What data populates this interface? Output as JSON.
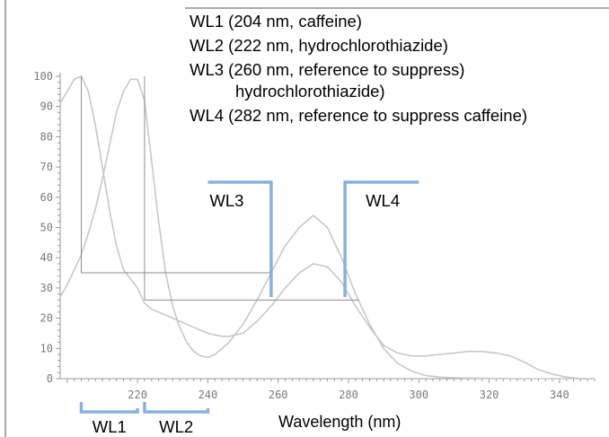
{
  "chart_data": {
    "type": "line",
    "title": "",
    "xlabel": "Wavelength (nm)",
    "ylabel": "",
    "xlim": [
      198,
      350
    ],
    "ylim": [
      0,
      100
    ],
    "grid": false,
    "x_ticks": [
      "220",
      "240",
      "260",
      "280",
      "300",
      "320",
      "340"
    ],
    "y_ticks": [
      "0",
      "10",
      "20",
      "30",
      "40",
      "50",
      "60",
      "70",
      "80",
      "90",
      "100"
    ],
    "legend": [
      "WL1 (204 nm, caffeine)",
      "WL2 (222 nm, hydrochlorothiazide)",
      "WL3 (260 nm, reference to suppress)",
      "hydrochlorothiazide)",
      "WL4 (282 nm, reference to suppress caffeine)"
    ],
    "series": [
      {
        "x": [
          198,
          200,
          202,
          204,
          206,
          208,
          210,
          212,
          214,
          216,
          218,
          220,
          222,
          224,
          226,
          228,
          230,
          232,
          234,
          236,
          238,
          240,
          242,
          244,
          246,
          248,
          250,
          254,
          258,
          262,
          266,
          270,
          274,
          278,
          282,
          286,
          290,
          294,
          298,
          302,
          306,
          310,
          314,
          318,
          322,
          326,
          330,
          334,
          338,
          342,
          346,
          350
        ],
        "y": [
          91,
          95,
          99,
          100,
          95,
          84,
          70,
          56,
          44,
          36,
          33,
          30,
          25,
          23,
          22,
          21,
          20,
          19,
          18,
          17,
          16,
          15,
          14.5,
          14,
          14,
          14.5,
          15,
          19,
          24,
          30,
          35,
          38,
          37,
          32,
          24,
          17,
          11,
          8.5,
          7.5,
          7.5,
          8,
          8.5,
          9,
          9,
          8.5,
          7.5,
          5.5,
          3,
          1.5,
          0.5,
          0,
          0
        ]
      },
      {
        "x": [
          198,
          200,
          202,
          204,
          206,
          208,
          210,
          212,
          214,
          216,
          218,
          220,
          222,
          224,
          226,
          228,
          230,
          232,
          234,
          236,
          238,
          240,
          242,
          244,
          246,
          248,
          250,
          254,
          258,
          262,
          266,
          270,
          274,
          278,
          282,
          286,
          290,
          294,
          298,
          302,
          306,
          310,
          314,
          320,
          330,
          340,
          350
        ],
        "y": [
          27,
          31,
          36,
          41,
          48,
          56,
          66,
          77,
          88,
          95,
          99,
          99,
          92,
          72,
          52,
          35,
          24,
          17,
          12,
          9,
          7.5,
          7,
          8,
          10,
          12,
          15,
          18,
          26,
          35,
          44,
          50,
          54,
          50,
          40,
          28,
          18,
          10,
          5,
          2.5,
          1,
          0.5,
          0.3,
          0.2,
          0.1,
          0,
          0,
          0
        ]
      }
    ],
    "annotations": {
      "wl1_drop": {
        "x": 204,
        "y_from": 100,
        "y_to": 35
      },
      "wl2_drop": {
        "x": 222,
        "y_from": 100,
        "y_to": 26
      },
      "h_line_1": {
        "x_from": 204,
        "x_to": 258,
        "y": 35
      },
      "h_line_2": {
        "x_from": 222,
        "x_to": 283,
        "y": 26
      },
      "wl3_bracket": {
        "x_from": 240,
        "x_to": 258,
        "y_top": 65,
        "y_bottom": 27,
        "label": "WL3"
      },
      "wl4_bracket": {
        "x_from": 279,
        "x_to": 300,
        "y_top": 65,
        "y_bottom": 27,
        "label": "WL4"
      },
      "wl1_bar": {
        "x_from": 204,
        "x_to": 220,
        "label": "WL1"
      },
      "wl2_bar": {
        "x_from": 222,
        "x_to": 240,
        "label": "WL2"
      }
    },
    "colors": {
      "curve": "#c8c8c8",
      "guide": "#8c8c8c",
      "bracket": "#8ab0e0",
      "axis": "#9a9a9a"
    }
  }
}
